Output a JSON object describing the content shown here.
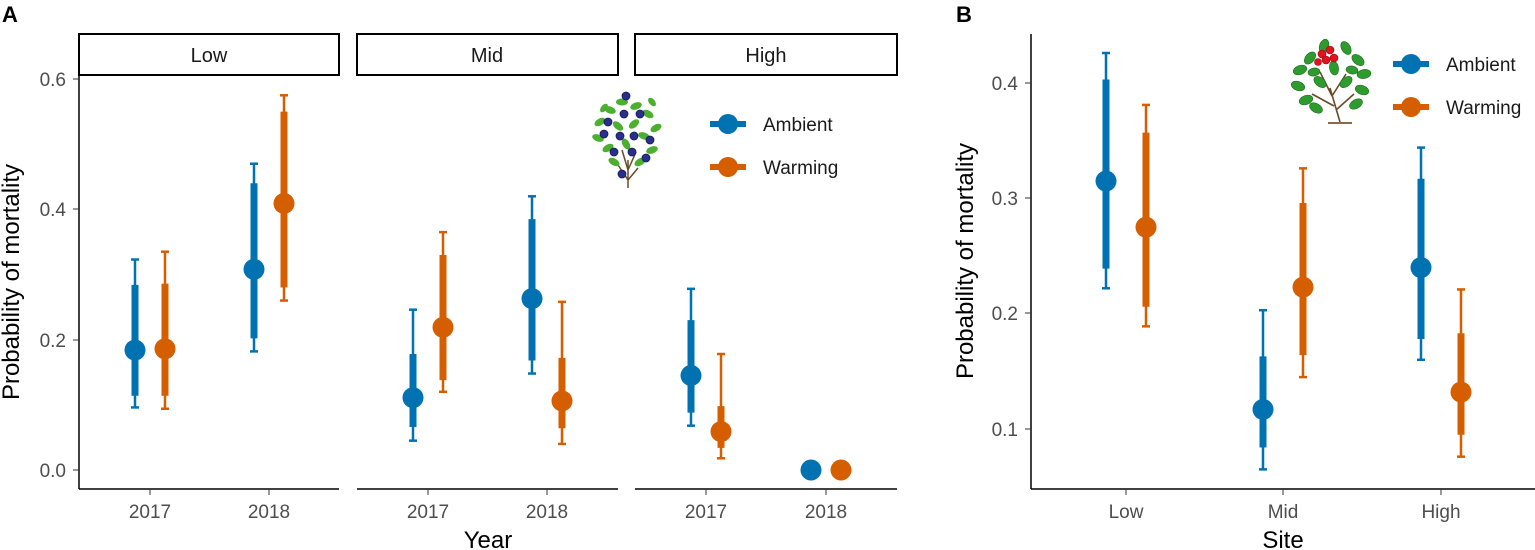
{
  "colors": {
    "ambient": "#0072b2",
    "warming": "#d55e00",
    "axis": "#000000",
    "tick_text": "#4d4d4d"
  },
  "chart_data": [
    {
      "panel_label": "A",
      "type": "scatter",
      "subtype": "point-interval, faceted",
      "ylabel": "Probability of mortality",
      "xlabel": "Year",
      "ylim": [
        -0.01,
        0.63
      ],
      "yticks": [
        "0.0",
        "0.2",
        "0.4",
        "0.6"
      ],
      "categories": [
        "2017",
        "2018"
      ],
      "legend": {
        "entries": [
          "Ambient",
          "Warming"
        ],
        "position": "top-right of facet Mid",
        "icon": "blueberry-shrub-icon"
      },
      "facets": [
        {
          "name": "Low",
          "series": [
            {
              "name": "Ambient",
              "points": [
                {
                  "x": "2017",
                  "mean": 0.184,
                  "inner": [
                    0.114,
                    0.284
                  ],
                  "outer": [
                    0.096,
                    0.323
                  ]
                },
                {
                  "x": "2018",
                  "mean": 0.308,
                  "inner": [
                    0.202,
                    0.44
                  ],
                  "outer": [
                    0.182,
                    0.47
                  ]
                }
              ]
            },
            {
              "name": "Warming",
              "points": [
                {
                  "x": "2017",
                  "mean": 0.186,
                  "inner": [
                    0.114,
                    0.286
                  ],
                  "outer": [
                    0.094,
                    0.335
                  ]
                },
                {
                  "x": "2018",
                  "mean": 0.409,
                  "inner": [
                    0.28,
                    0.55
                  ],
                  "outer": [
                    0.26,
                    0.575
                  ]
                }
              ]
            }
          ]
        },
        {
          "name": "Mid",
          "series": [
            {
              "name": "Ambient",
              "points": [
                {
                  "x": "2017",
                  "mean": 0.111,
                  "inner": [
                    0.066,
                    0.178
                  ],
                  "outer": [
                    0.045,
                    0.246
                  ]
                },
                {
                  "x": "2018",
                  "mean": 0.263,
                  "inner": [
                    0.168,
                    0.385
                  ],
                  "outer": [
                    0.148,
                    0.42
                  ]
                }
              ]
            },
            {
              "name": "Warming",
              "points": [
                {
                  "x": "2017",
                  "mean": 0.219,
                  "inner": [
                    0.138,
                    0.33
                  ],
                  "outer": [
                    0.12,
                    0.365
                  ]
                },
                {
                  "x": "2018",
                  "mean": 0.106,
                  "inner": [
                    0.064,
                    0.172
                  ],
                  "outer": [
                    0.04,
                    0.258
                  ]
                }
              ]
            }
          ]
        },
        {
          "name": "High",
          "series": [
            {
              "name": "Ambient",
              "points": [
                {
                  "x": "2017",
                  "mean": 0.145,
                  "inner": [
                    0.088,
                    0.23
                  ],
                  "outer": [
                    0.068,
                    0.278
                  ]
                },
                {
                  "x": "2018",
                  "mean": 0.0
                }
              ]
            },
            {
              "name": "Warming",
              "points": [
                {
                  "x": "2017",
                  "mean": 0.059,
                  "inner": [
                    0.034,
                    0.098
                  ],
                  "outer": [
                    0.018,
                    0.178
                  ]
                },
                {
                  "x": "2018",
                  "mean": 0.0
                }
              ]
            }
          ]
        }
      ]
    },
    {
      "panel_label": "B",
      "type": "scatter",
      "subtype": "point-interval",
      "ylabel": "Probability of mortality",
      "xlabel": "Site",
      "ylim": [
        0.045,
        0.445
      ],
      "yticks": [
        "0.1",
        "0.2",
        "0.3",
        "0.4"
      ],
      "categories": [
        "Low",
        "Mid",
        "High"
      ],
      "legend": {
        "entries": [
          "Ambient",
          "Warming"
        ],
        "position": "top-right",
        "icon": "lingonberry-shrub-icon"
      },
      "series": [
        {
          "name": "Ambient",
          "points": [
            {
              "x": "Low",
              "mean": 0.315,
              "inner": [
                0.239,
                0.403
              ],
              "outer": [
                0.222,
                0.426
              ]
            },
            {
              "x": "Mid",
              "mean": 0.117,
              "inner": [
                0.084,
                0.163
              ],
              "outer": [
                0.065,
                0.203
              ]
            },
            {
              "x": "High",
              "mean": 0.24,
              "inner": [
                0.178,
                0.317
              ],
              "outer": [
                0.16,
                0.344
              ]
            }
          ]
        },
        {
          "name": "Warming",
          "points": [
            {
              "x": "Low",
              "mean": 0.275,
              "inner": [
                0.206,
                0.357
              ],
              "outer": [
                0.189,
                0.381
              ]
            },
            {
              "x": "Mid",
              "mean": 0.223,
              "inner": [
                0.164,
                0.296
              ],
              "outer": [
                0.145,
                0.326
              ]
            },
            {
              "x": "High",
              "mean": 0.132,
              "inner": [
                0.095,
                0.183
              ],
              "outer": [
                0.076,
                0.221
              ]
            }
          ]
        }
      ]
    }
  ]
}
